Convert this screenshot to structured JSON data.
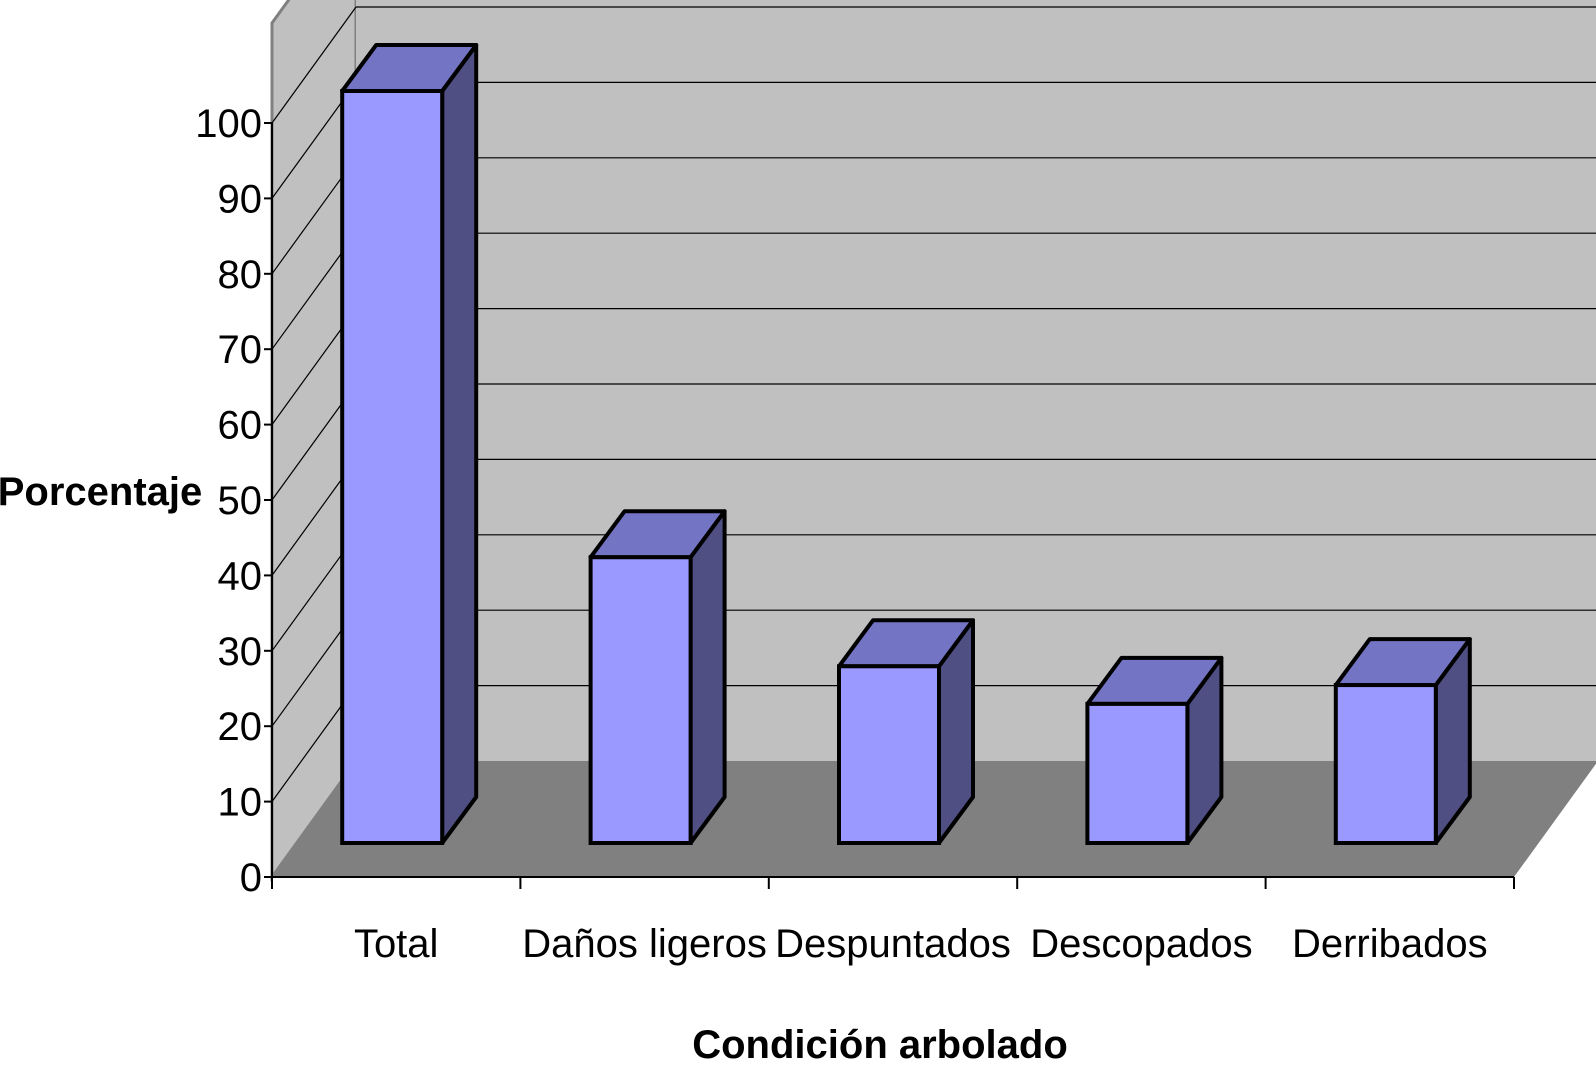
{
  "chart_data": {
    "type": "bar",
    "title": "",
    "xlabel": "Condición arbolado",
    "ylabel": "Porcentaje",
    "categories": [
      "Total",
      "Daños ligeros",
      "Despuntados",
      "Descopados",
      "Derribados"
    ],
    "values": [
      100,
      38,
      23.5,
      18.5,
      21
    ],
    "ylim": [
      0,
      100
    ],
    "yticks": [
      "0",
      "10",
      "20",
      "30",
      "40",
      "50",
      "60",
      "70",
      "80",
      "90",
      "100"
    ],
    "grid": true,
    "legend": "none",
    "three_d": true,
    "colors": {
      "bar_front": "#9999ff",
      "bar_top": "#7474c4",
      "bar_side": "#4f4f83",
      "back_wall": "#c0c0c0",
      "side_wall": "#c0c0c0",
      "floor": "#808080",
      "grid": "#000000",
      "outline": "#000000"
    }
  }
}
